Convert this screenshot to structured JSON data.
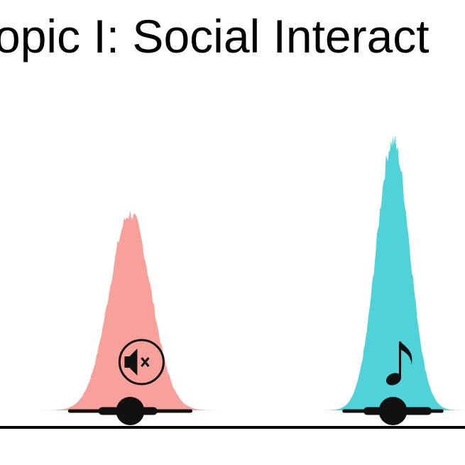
{
  "chart_data": {
    "type": "area",
    "title": "opic I: Social Interact",
    "xlabel": "",
    "ylabel": "",
    "grid": false,
    "series": [
      {
        "icon": "muted-speaker-icon",
        "color": "#f8a09a",
        "mean": 0.28,
        "sd": 0.045,
        "peak": 1.0,
        "ci_inner": [
          0.22,
          0.33
        ],
        "ci_outer": [
          0.15,
          0.41
        ]
      },
      {
        "icon": "music-note-icon",
        "color": "#4fd3d8",
        "mean": 0.845,
        "sd": 0.036,
        "peak": 1.37,
        "ci_inner": [
          0.79,
          0.92
        ],
        "ci_outer": [
          0.74,
          0.95
        ]
      }
    ]
  }
}
